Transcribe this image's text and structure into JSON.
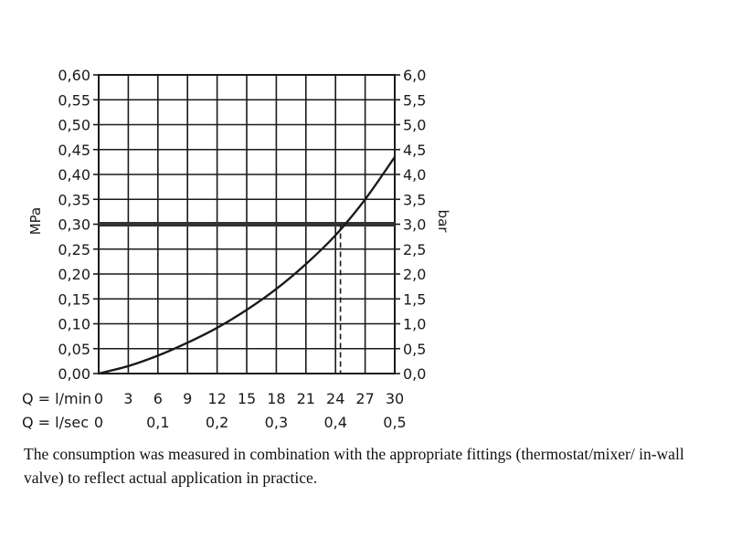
{
  "chart_data": {
    "type": "line",
    "x_flow_lpm": [
      0,
      3,
      6,
      9,
      12,
      15,
      18,
      21,
      24,
      27,
      30
    ],
    "series": [
      {
        "x": [
          0,
          3,
          6,
          9,
          12,
          15,
          18,
          21,
          24,
          27,
          30
        ],
        "y": [
          0.0,
          0.015,
          0.036,
          0.062,
          0.092,
          0.128,
          0.17,
          0.22,
          0.278,
          0.35,
          0.435
        ],
        "color": "#1a1a1a"
      }
    ],
    "reference_line": {
      "y": 0.3,
      "color": "#333333"
    },
    "intersection": {
      "x": 24.5,
      "y": 0.3,
      "style": "dashed"
    },
    "xlim": [
      0,
      30
    ],
    "ylim": [
      0,
      0.6
    ],
    "y_left_label": "MPa",
    "y_left_ticks": [
      "0,00",
      "0,05",
      "0,10",
      "0,15",
      "0,20",
      "0,25",
      "0,30",
      "0,35",
      "0,40",
      "0,45",
      "0,50",
      "0,55",
      "0,60"
    ],
    "y_right_label": "bar",
    "y_right_ticks": [
      "0,0",
      "0,5",
      "1,0",
      "1,5",
      "2,0",
      "2,5",
      "3,0",
      "3,5",
      "4,0",
      "4,5",
      "5,0",
      "5,5",
      "6,0"
    ],
    "x_axis_1": {
      "label": "Q = l/min",
      "ticks": [
        {
          "v": 0,
          "t": "0"
        },
        {
          "v": 3,
          "t": "3"
        },
        {
          "v": 6,
          "t": "6"
        },
        {
          "v": 9,
          "t": "9"
        },
        {
          "v": 12,
          "t": "12"
        },
        {
          "v": 15,
          "t": "15"
        },
        {
          "v": 18,
          "t": "18"
        },
        {
          "v": 21,
          "t": "21"
        },
        {
          "v": 24,
          "t": "24"
        },
        {
          "v": 27,
          "t": "27"
        },
        {
          "v": 30,
          "t": "30"
        }
      ]
    },
    "x_axis_2": {
      "label": "Q = l/sec",
      "ticks": [
        {
          "v": 0,
          "t": "0"
        },
        {
          "v": 6,
          "t": "0,1"
        },
        {
          "v": 12,
          "t": "0,2"
        },
        {
          "v": 18,
          "t": "0,3"
        },
        {
          "v": 24,
          "t": "0,4"
        },
        {
          "v": 30,
          "t": "0,5"
        }
      ]
    },
    "grid": true
  },
  "caption": "The consumption was measured in combination with the appropriate fittings (thermostat/mixer/ in-wall valve) to reflect actual application in practice."
}
